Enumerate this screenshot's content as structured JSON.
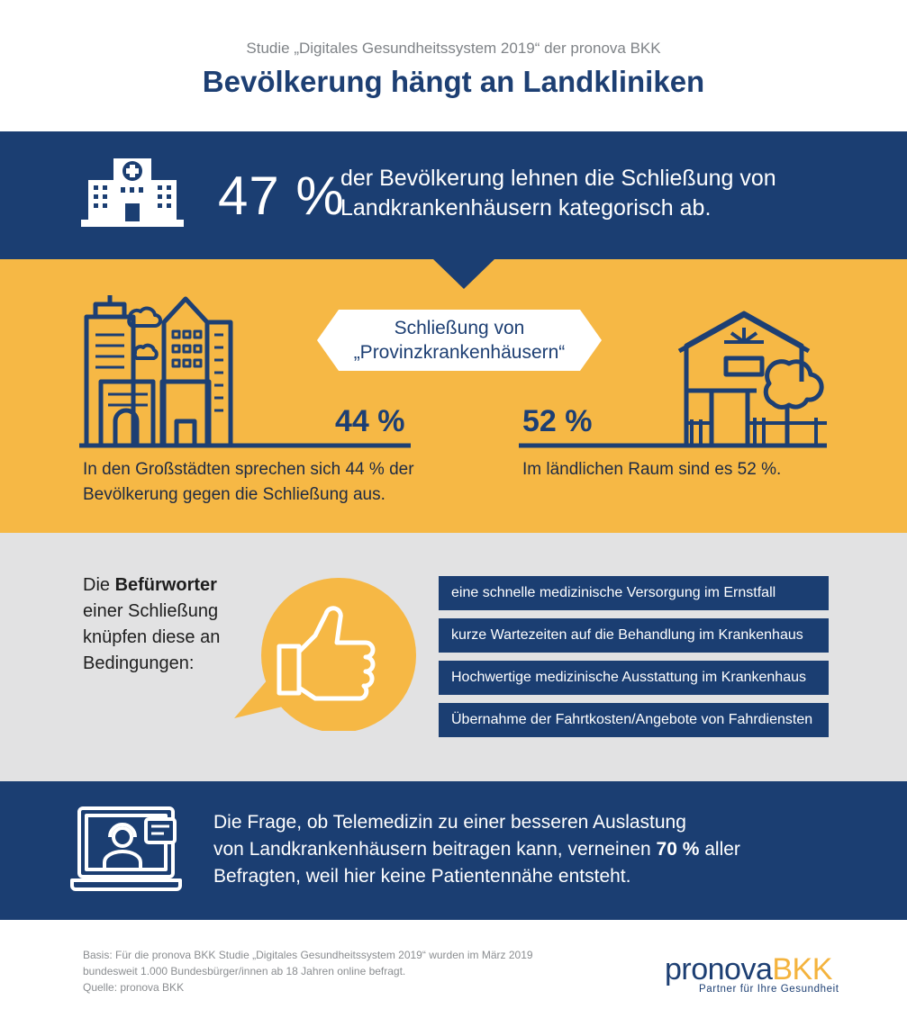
{
  "header": {
    "subtitle": "Studie „Digitales Gesundheitssystem 2019“ der pronova BKK",
    "title": "Bevölkerung hängt an Landkliniken"
  },
  "hospital_band": {
    "percent": "47 %",
    "text_line1": "der Bevölkerung lehnen die Schließung von",
    "text_line2": "Landkrankenhäusern kategorisch ab.",
    "icon": "hospital-icon"
  },
  "closure_band": {
    "tag_line1": "Schließung von",
    "tag_line2": "„Provinzkrankenhäusern“",
    "city": {
      "percent": "44 %",
      "text_line1": "In den Großstädten sprechen sich 44 % der",
      "text_line2": "Bevölkerung gegen die Schließung aus.",
      "icon": "city-skyline-icon"
    },
    "rural": {
      "percent": "52 %",
      "text": "Im ländlichen Raum sind es 52 %.",
      "icon": "farmhouse-icon"
    }
  },
  "supporters_band": {
    "text_pre": "Die ",
    "text_bold": "Befürworter",
    "text_line2": "einer Schließung",
    "text_line3": "knüpfen diese an",
    "text_line4": "Bedingungen:",
    "icon": "thumbs-up-icon",
    "conditions": [
      "eine schnelle medizinische Versorgung im Ernstfall",
      "kurze Wartezeiten auf die Behandlung im Krankenhaus",
      "Hochwertige medizinische Ausstattung im Krankenhaus",
      "Übernahme der Fahrtkosten/Angebote von Fahrdiensten"
    ]
  },
  "telemedicine_band": {
    "line1": "Die Frage, ob Telemedizin zu einer besseren Auslastung",
    "line2_pre": "von Landkrankenhäusern beitragen kann, verneinen ",
    "line2_bold": "70 %",
    "line2_post": " aller",
    "line3": "Befragten, weil hier keine Patientennähe entsteht.",
    "icon": "telemedicine-laptop-icon"
  },
  "footer": {
    "basis_line1": "Basis: Für die pronova BKK Studie „Digitales Gesundheitssystem 2019“ wurden im März 2019",
    "basis_line2": "bundesweit 1.000 Bundesbürger/innen ab 18 Jahren online befragt.",
    "source": "Quelle: pronova BKK",
    "logo_part1": "pronova",
    "logo_part2": "BKK",
    "tagline": "Partner für Ihre Gesundheit"
  },
  "colors": {
    "navy": "#1b3e72",
    "yellow": "#f6b845",
    "gray": "#e2e2e3"
  }
}
